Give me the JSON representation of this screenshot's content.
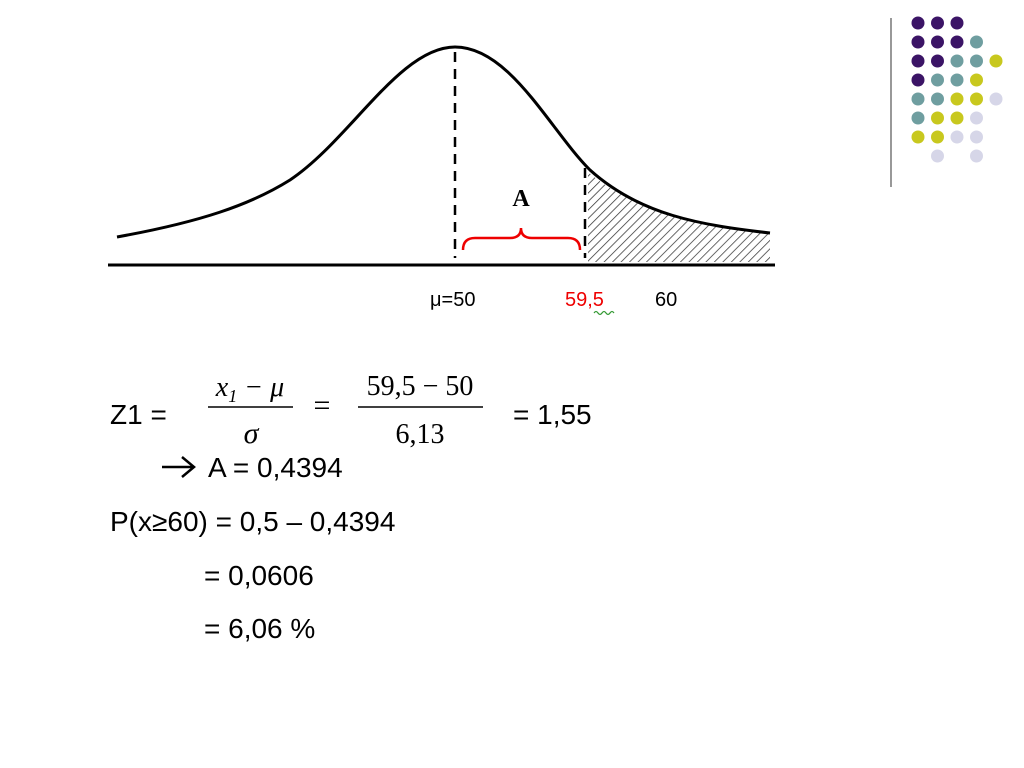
{
  "diagram": {
    "area_label": "A",
    "mean_label": "μ=50",
    "cut_label": "59,5",
    "x_label": "60"
  },
  "formula": {
    "prefix": "Z1 =",
    "num_var": "x",
    "num_sub": "1",
    "num_rest": " − μ",
    "den": "σ",
    "equals": "=",
    "num2": "59,5 − 50",
    "den2": "6,13",
    "result": "= 1,55"
  },
  "lines": [
    "A = 0,4394",
    "P(x≥60) = 0,5 – 0,4394",
    "= 0,0606",
    "= 6,06 %"
  ]
}
